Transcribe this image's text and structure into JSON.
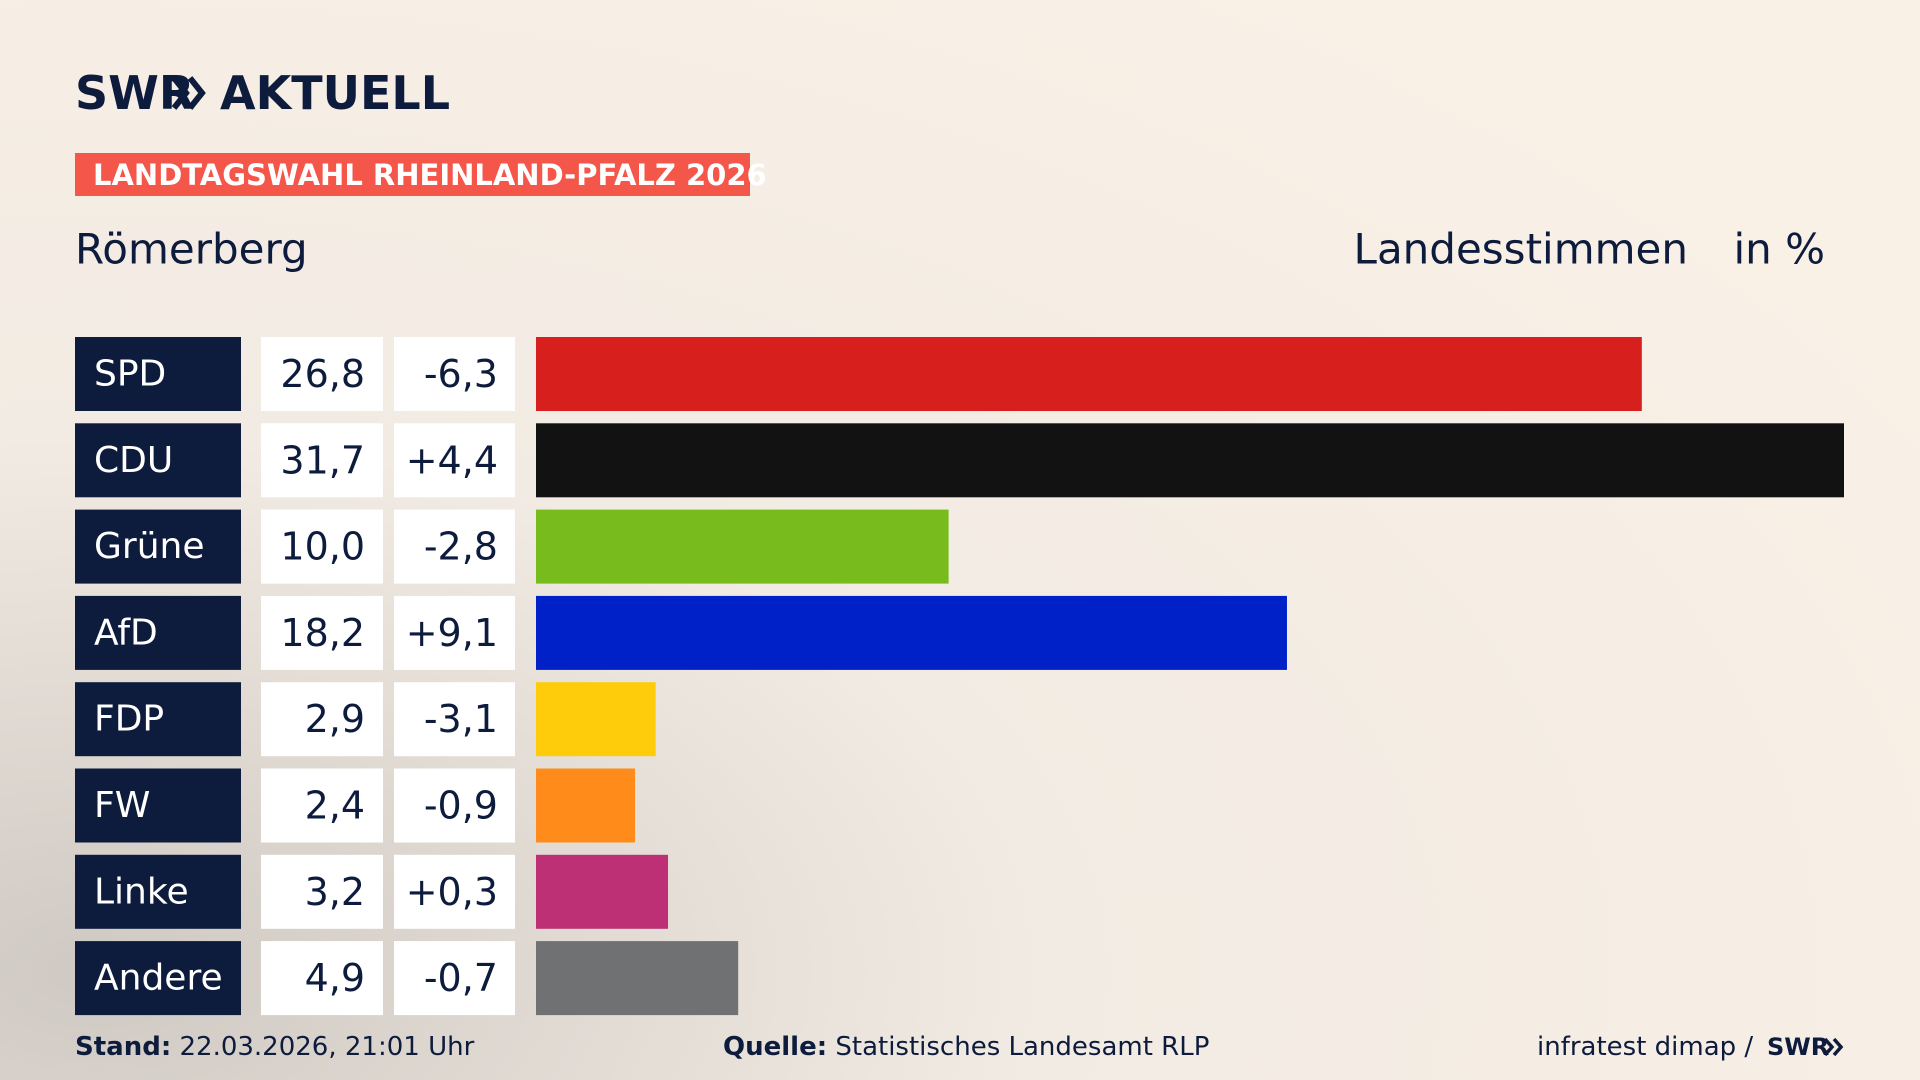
{
  "chart_data": {
    "type": "bar",
    "brand": "SWR",
    "brand_section": "AKTUELL",
    "tag": "LANDTAGSWAHL RHEINLAND-PFALZ 2026",
    "title": "Römerberg",
    "subtitle": "Landesstimmen",
    "unit": "in %",
    "categories": [
      "SPD",
      "CDU",
      "Grüne",
      "AfD",
      "FDP",
      "FW",
      "Linke",
      "Andere"
    ],
    "values": [
      26.8,
      31.7,
      10.0,
      18.2,
      2.9,
      2.4,
      3.2,
      4.9
    ],
    "value_labels": [
      "26,8",
      "31,7",
      "10,0",
      "18,2",
      "2,9",
      "2,4",
      "3,2",
      "4,9"
    ],
    "change_labels": [
      "-6,3",
      "+4,4",
      "-2,8",
      "+9,1",
      "-3,1",
      "-0,9",
      "+0,3",
      "-0,7"
    ],
    "colors": [
      "#d71f1d",
      "#121212",
      "#78bb1c",
      "#0021c8",
      "#ffcc0c",
      "#ff8c1a",
      "#bd3075",
      "#707173"
    ],
    "footer": {
      "stand_label": "Stand:",
      "stand": "22.03.2026, 21:01 Uhr",
      "source_label": "Quelle:",
      "source": "Statistisches Landesamt RLP",
      "credit": "infratest dimap /",
      "credit_brand": "SWR"
    }
  }
}
